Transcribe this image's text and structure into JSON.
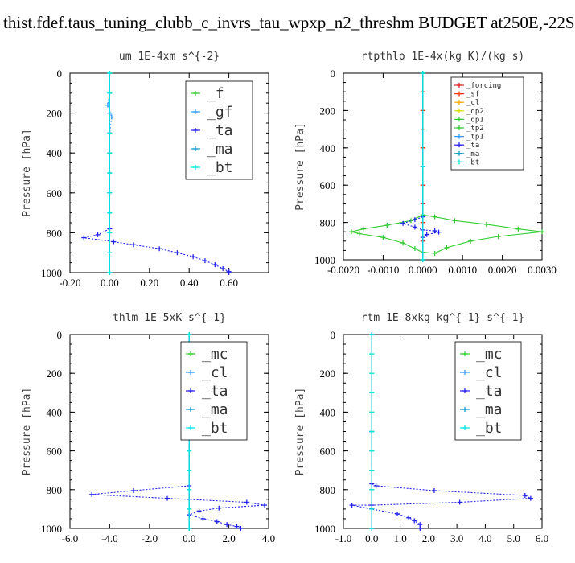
{
  "title": "thist.fdef.taus_tuning_clubb_c_invrs_tau_wpxp_n2_threshm  BUDGET at250E,-22S",
  "chart_data": [
    {
      "type": "line",
      "title": "um  1E-4xm s^{-2}",
      "ylabel": "Pressure [hPa]",
      "xlim": [
        -0.2,
        0.8
      ],
      "ylim": [
        1000,
        0
      ],
      "xticks": [
        -0.2,
        0.0,
        0.2,
        0.4,
        0.6
      ],
      "xtick_labels": [
        "-0.20",
        "0.00",
        "0.20",
        "0.40",
        "0.60"
      ],
      "yticks": [
        0,
        200,
        400,
        600,
        800,
        1000
      ],
      "ytick_labels": [
        "0",
        "200",
        "400",
        "600",
        "800",
        "1000"
      ],
      "legend_position": "top-right",
      "legend_style": "large",
      "series": [
        {
          "name": "_f",
          "color": "#33cc33",
          "points": [
            [
              0,
              0
            ],
            [
              0,
              100
            ],
            [
              0,
              200
            ],
            [
              0,
              300
            ],
            [
              0,
              400
            ],
            [
              0,
              500
            ],
            [
              0,
              600
            ],
            [
              0,
              700
            ],
            [
              0,
              800
            ],
            [
              0,
              900
            ],
            [
              0,
              1000
            ]
          ]
        },
        {
          "name": "_gf",
          "color": "#3399ff",
          "points": [
            [
              0,
              0
            ],
            [
              0,
              100
            ],
            [
              -0.01,
              160
            ],
            [
              0.01,
              220
            ],
            [
              0,
              300
            ],
            [
              0,
              500
            ],
            [
              0,
              700
            ],
            [
              0,
              780
            ]
          ]
        },
        {
          "name": "_ta",
          "color": "#2222ee",
          "points": [
            [
              0,
              780
            ],
            [
              -0.06,
              810
            ],
            [
              -0.13,
              825
            ],
            [
              0.02,
              845
            ],
            [
              0.12,
              860
            ],
            [
              0.25,
              880
            ],
            [
              0.34,
              900
            ],
            [
              0.42,
              920
            ],
            [
              0.48,
              940
            ],
            [
              0.53,
              960
            ],
            [
              0.57,
              980
            ],
            [
              0.6,
              995
            ],
            [
              0.6,
              1000
            ]
          ]
        },
        {
          "name": "_ma",
          "color": "#1199cc",
          "points": [
            [
              0,
              0
            ],
            [
              0,
              200
            ],
            [
              0,
              400
            ],
            [
              0,
              600
            ],
            [
              0,
              800
            ],
            [
              0,
              1000
            ]
          ]
        },
        {
          "name": "_bt",
          "color": "#00e5e5",
          "points": [
            [
              0,
              0
            ],
            [
              0,
              100
            ],
            [
              0,
              200
            ],
            [
              0,
              300
            ],
            [
              0,
              400
            ],
            [
              0,
              500
            ],
            [
              0,
              600
            ],
            [
              0,
              700
            ],
            [
              0,
              800
            ],
            [
              0,
              900
            ],
            [
              0,
              1000
            ]
          ]
        }
      ]
    },
    {
      "type": "line",
      "title": "rtpthlp  1E-4x(kg K)/(kg s)",
      "ylabel": "Pressure [hPa]",
      "xlim": [
        -0.002,
        0.003
      ],
      "ylim": [
        1000,
        0
      ],
      "xticks": [
        -0.002,
        -0.001,
        0.0,
        0.001,
        0.002,
        0.003
      ],
      "xtick_labels": [
        "-0.0020",
        "-0.0010",
        "0.0000",
        "0.0010",
        "0.0020",
        "0.0030"
      ],
      "yticks": [
        0,
        200,
        400,
        600,
        800,
        1000
      ],
      "ytick_labels": [
        "0",
        "200",
        "400",
        "600",
        "800",
        "1000"
      ],
      "legend_position": "top-right",
      "legend_style": "small",
      "series": [
        {
          "name": "_forcing",
          "color": "#dd2222",
          "points": [
            [
              0,
              0
            ],
            [
              0,
              100
            ],
            [
              0,
              200
            ],
            [
              0,
              300
            ],
            [
              0,
              400
            ],
            [
              0,
              500
            ],
            [
              0,
              600
            ],
            [
              0,
              700
            ],
            [
              0,
              800
            ],
            [
              0,
              900
            ],
            [
              0,
              1000
            ]
          ]
        },
        {
          "name": "_sf",
          "color": "#ff3300",
          "points": [
            [
              0,
              0
            ],
            [
              0,
              200
            ],
            [
              0,
              400
            ],
            [
              0,
              600
            ],
            [
              0,
              800
            ],
            [
              0,
              1000
            ]
          ]
        },
        {
          "name": "_cl",
          "color": "#ffaa00",
          "points": [
            [
              0,
              0
            ],
            [
              0,
              500
            ],
            [
              0,
              1000
            ]
          ]
        },
        {
          "name": "_dp2",
          "color": "#dddd00",
          "points": [
            [
              0,
              0
            ],
            [
              0,
              500
            ],
            [
              0,
              1000
            ]
          ]
        },
        {
          "name": "_dp1",
          "color": "#33cc33",
          "points": [
            [
              0,
              0
            ],
            [
              0,
              500
            ],
            [
              0,
              1000
            ]
          ]
        },
        {
          "name": "_tp2",
          "color": "#33cc33",
          "points": [
            [
              0,
              760
            ],
            [
              -0.0003,
              790
            ],
            [
              -0.0009,
              815
            ],
            [
              -0.0015,
              835
            ],
            [
              -0.0018,
              850
            ],
            [
              -0.0016,
              860
            ],
            [
              -0.001,
              880
            ],
            [
              -0.0005,
              910
            ],
            [
              -0.0002,
              940
            ],
            [
              0,
              960
            ],
            [
              0.0003,
              965
            ],
            [
              0.0006,
              935
            ],
            [
              0.0012,
              900
            ],
            [
              0.0019,
              875
            ],
            [
              0.003,
              850
            ],
            [
              0.0024,
              835
            ],
            [
              0.0016,
              810
            ],
            [
              0.0008,
              790
            ],
            [
              0.0003,
              770
            ],
            [
              0,
              760
            ]
          ]
        },
        {
          "name": "_tp1",
          "color": "#3399ff",
          "points": [
            [
              0,
              0
            ],
            [
              0,
              500
            ],
            [
              0,
              1000
            ]
          ]
        },
        {
          "name": "_ta",
          "color": "#2222ee",
          "points": [
            [
              0,
              770
            ],
            [
              -0.0002,
              785
            ],
            [
              -0.0005,
              805
            ],
            [
              -0.0002,
              825
            ],
            [
              0,
              840
            ],
            [
              0.0003,
              845
            ],
            [
              0.0004,
              852
            ],
            [
              0.0001,
              865
            ],
            [
              0,
              880
            ]
          ]
        },
        {
          "name": "_ma",
          "color": "#1199cc",
          "points": [
            [
              0,
              0
            ],
            [
              0,
              500
            ],
            [
              0,
              1000
            ]
          ]
        },
        {
          "name": "_bt",
          "color": "#00e5e5",
          "points": [
            [
              0,
              0
            ],
            [
              0,
              500
            ],
            [
              0,
              1000
            ]
          ]
        }
      ]
    },
    {
      "type": "line",
      "title": "thlm  1E-5xK s^{-1}",
      "ylabel": "Pressure [hPa]",
      "xlim": [
        -6.0,
        4.0
      ],
      "ylim": [
        1000,
        0
      ],
      "xticks": [
        -6,
        -4,
        -2,
        0,
        2,
        4
      ],
      "xtick_labels": [
        "-6.0",
        "-4.0",
        "-2.0",
        "0.0",
        "2.0",
        "4.0"
      ],
      "yticks": [
        0,
        200,
        400,
        600,
        800,
        1000
      ],
      "ytick_labels": [
        "0",
        "200",
        "400",
        "600",
        "800",
        "1000"
      ],
      "legend_position": "top-right",
      "legend_style": "large",
      "series": [
        {
          "name": "_mc",
          "color": "#33cc33",
          "points": [
            [
              0,
              0
            ],
            [
              0,
              100
            ],
            [
              0,
              200
            ],
            [
              0,
              300
            ],
            [
              0,
              400
            ],
            [
              0,
              500
            ],
            [
              0,
              600
            ],
            [
              0,
              700
            ],
            [
              0,
              800
            ],
            [
              0,
              900
            ],
            [
              0,
              1000
            ]
          ]
        },
        {
          "name": "_cl",
          "color": "#3399ff",
          "points": [
            [
              0,
              0
            ],
            [
              0,
              500
            ],
            [
              0,
              1000
            ]
          ]
        },
        {
          "name": "_ta",
          "color": "#2222ee",
          "points": [
            [
              0,
              780
            ],
            [
              -2.8,
              805
            ],
            [
              -4.9,
              825
            ],
            [
              -1.1,
              845
            ],
            [
              2.9,
              865
            ],
            [
              3.8,
              880
            ],
            [
              1.5,
              895
            ],
            [
              0.5,
              910
            ],
            [
              0,
              930
            ],
            [
              0.7,
              950
            ],
            [
              1.4,
              965
            ],
            [
              1.9,
              980
            ],
            [
              2.4,
              990
            ],
            [
              2.6,
              1000
            ]
          ]
        },
        {
          "name": "_ma",
          "color": "#1199cc",
          "points": [
            [
              0,
              0
            ],
            [
              0,
              500
            ],
            [
              0,
              1000
            ]
          ]
        },
        {
          "name": "_bt",
          "color": "#00e5e5",
          "points": [
            [
              0,
              0
            ],
            [
              0,
              100
            ],
            [
              0,
              200
            ],
            [
              0,
              300
            ],
            [
              0,
              400
            ],
            [
              0,
              500
            ],
            [
              0,
              600
            ],
            [
              0,
              700
            ],
            [
              0,
              800
            ],
            [
              0,
              900
            ],
            [
              0,
              1000
            ]
          ]
        }
      ]
    },
    {
      "type": "line",
      "title": "rtm  1E-8xkg kg^{-1} s^{-1}",
      "ylabel": "Pressure [hPa]",
      "xlim": [
        -1.0,
        6.0
      ],
      "ylim": [
        1000,
        0
      ],
      "xticks": [
        -1,
        0,
        1,
        2,
        3,
        4,
        5,
        6
      ],
      "xtick_labels": [
        "-1.0",
        "0.0",
        "1.0",
        "2.0",
        "3.0",
        "4.0",
        "5.0",
        "6.0"
      ],
      "yticks": [
        0,
        200,
        400,
        600,
        800,
        1000
      ],
      "ytick_labels": [
        "0",
        "200",
        "400",
        "600",
        "800",
        "1000"
      ],
      "legend_position": "top-right",
      "legend_style": "large",
      "series": [
        {
          "name": "_mc",
          "color": "#33cc33",
          "points": [
            [
              0,
              0
            ],
            [
              0,
              100
            ],
            [
              0,
              200
            ],
            [
              0,
              300
            ],
            [
              0,
              400
            ],
            [
              0,
              500
            ],
            [
              0,
              600
            ],
            [
              0,
              700
            ],
            [
              0,
              800
            ],
            [
              0,
              900
            ],
            [
              0,
              1000
            ]
          ]
        },
        {
          "name": "_cl",
          "color": "#3399ff",
          "points": [
            [
              0,
              0
            ],
            [
              0,
              500
            ],
            [
              0,
              1000
            ]
          ]
        },
        {
          "name": "_ta",
          "color": "#2222ee",
          "points": [
            [
              0,
              770
            ],
            [
              0.15,
              780
            ],
            [
              2.2,
              805
            ],
            [
              5.4,
              830
            ],
            [
              5.6,
              845
            ],
            [
              3.1,
              865
            ],
            [
              0,
              880
            ],
            [
              -0.7,
              880
            ],
            [
              0,
              900
            ],
            [
              0.9,
              925
            ],
            [
              1.3,
              945
            ],
            [
              1.5,
              960
            ],
            [
              1.7,
              980
            ],
            [
              1.7,
              1000
            ]
          ]
        },
        {
          "name": "_ma",
          "color": "#1199cc",
          "points": [
            [
              0,
              0
            ],
            [
              0,
              500
            ],
            [
              0,
              1000
            ]
          ]
        },
        {
          "name": "_bt",
          "color": "#00e5e5",
          "points": [
            [
              0,
              0
            ],
            [
              0,
              100
            ],
            [
              0,
              200
            ],
            [
              0,
              300
            ],
            [
              0,
              400
            ],
            [
              0,
              500
            ],
            [
              0,
              600
            ],
            [
              0,
              700
            ],
            [
              0,
              800
            ],
            [
              0,
              900
            ],
            [
              0,
              1000
            ]
          ]
        }
      ]
    }
  ]
}
